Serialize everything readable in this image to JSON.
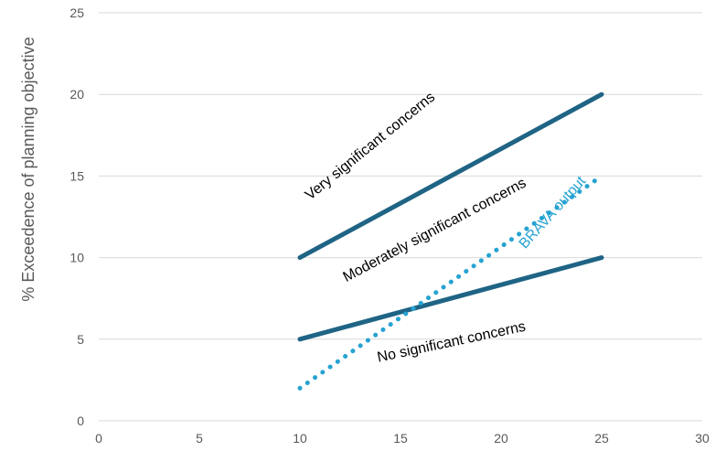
{
  "chart_data": {
    "type": "line",
    "title": "",
    "xlabel": "",
    "ylabel": "% Exceedence of planning objective",
    "xlim": [
      0,
      30
    ],
    "ylim": [
      0,
      25
    ],
    "xticks": [
      0,
      5,
      10,
      15,
      20,
      25,
      30
    ],
    "yticks": [
      0,
      5,
      10,
      15,
      20,
      25
    ],
    "x_tick_labels": [
      "0",
      "5",
      "10",
      "15",
      "20",
      "25",
      "30"
    ],
    "y_tick_labels": [
      "0",
      "5",
      "10",
      "15",
      "20",
      "25"
    ],
    "grid": "horizontal",
    "legend": "none",
    "series": [
      {
        "x": [
          10,
          25
        ],
        "y": [
          10,
          20
        ],
        "color": "#1f6485",
        "style": "solid"
      },
      {
        "x": [
          10,
          25
        ],
        "y": [
          5,
          10
        ],
        "color": "#1f6485",
        "style": "solid"
      },
      {
        "x": [
          10,
          25
        ],
        "y": [
          2,
          15
        ],
        "color": "#26a3d1",
        "style": "dotted"
      }
    ],
    "annotations": [
      {
        "text": "Very significant concerns",
        "x": 10.5,
        "y": 13.5,
        "angle": -39,
        "color": "#000000"
      },
      {
        "text": "Moderately significant concerns",
        "x": 12.3,
        "y": 8.5,
        "angle": -28,
        "color": "#000000"
      },
      {
        "text": "BRAVA output",
        "x": 21.2,
        "y": 10.5,
        "angle": -48,
        "color": "#26a3d1"
      },
      {
        "text": "No significant concerns",
        "x": 13.9,
        "y": 3.6,
        "angle": -12,
        "color": "#000000"
      }
    ]
  }
}
